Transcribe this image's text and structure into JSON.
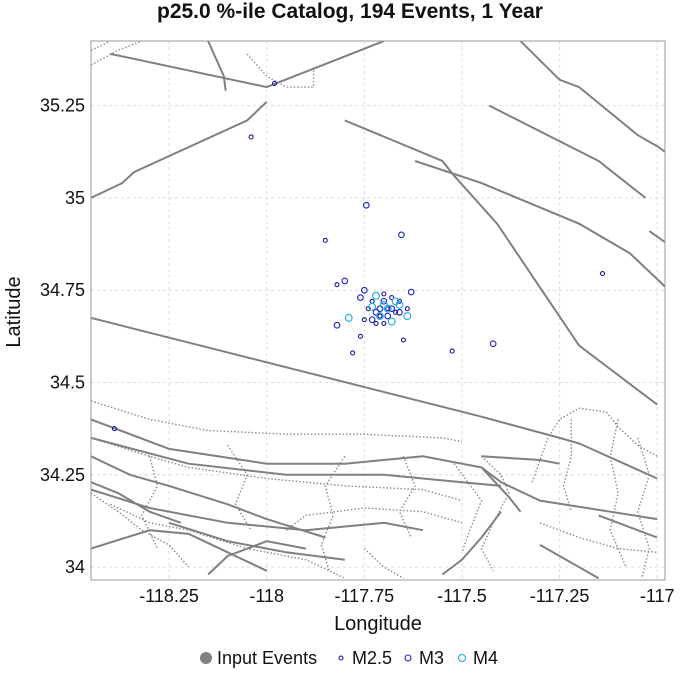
{
  "chart_data": {
    "type": "scatter",
    "title": "p25.0 %-ile Catalog, 194 Events, 1 Year",
    "xlabel": "Longitude",
    "ylabel": "Latitude",
    "xlim": [
      -118.45,
      -116.98
    ],
    "ylim": [
      33.965,
      35.425
    ],
    "xticks": [
      -118.25,
      -118,
      -117.75,
      -117.5,
      -117.25,
      -117
    ],
    "xtick_labels": [
      "-118.25",
      "-118",
      "-117.75",
      "-117.5",
      "-117.25",
      "-117"
    ],
    "yticks": [
      34,
      34.25,
      34.5,
      34.75,
      35,
      35.25
    ],
    "ytick_labels": [
      "34",
      "34.25",
      "34.5",
      "34.75",
      "35",
      "35.25"
    ],
    "grid": true,
    "legend_position": "bottom",
    "legend": [
      {
        "label": "Input Events",
        "marker": "filled-circle",
        "color": "#808080"
      },
      {
        "label": "M2.5",
        "marker": "open-circle",
        "color": "#1a1aa0"
      },
      {
        "label": "M3",
        "marker": "open-circle",
        "color": "#2020c0"
      },
      {
        "label": "M4",
        "marker": "open-circle",
        "color": "#20a8e0"
      }
    ],
    "series": [
      {
        "name": "M2.5",
        "color": "#1a1aa0",
        "points": [
          [
            -117.98,
            35.31
          ],
          [
            -118.04,
            35.165
          ],
          [
            -117.85,
            34.885
          ],
          [
            -117.82,
            34.765
          ],
          [
            -117.78,
            34.58
          ],
          [
            -117.76,
            34.625
          ],
          [
            -117.65,
            34.615
          ],
          [
            -117.525,
            34.585
          ],
          [
            -117.14,
            34.795
          ],
          [
            -118.39,
            34.375
          ],
          [
            -117.7,
            34.66
          ],
          [
            -117.67,
            34.69
          ],
          [
            -117.73,
            34.72
          ],
          [
            -117.69,
            34.7
          ],
          [
            -117.71,
            34.68
          ],
          [
            -117.66,
            34.72
          ],
          [
            -117.74,
            34.7
          ],
          [
            -117.72,
            34.66
          ],
          [
            -117.68,
            34.73
          ],
          [
            -117.7,
            34.74
          ],
          [
            -117.75,
            34.67
          ],
          [
            -117.64,
            34.7
          ]
        ]
      },
      {
        "name": "M3",
        "color": "#2020c0",
        "points": [
          [
            -117.745,
            34.98
          ],
          [
            -117.655,
            34.9
          ],
          [
            -117.42,
            34.605
          ],
          [
            -117.82,
            34.655
          ],
          [
            -117.8,
            34.775
          ],
          [
            -117.63,
            34.745
          ],
          [
            -117.71,
            34.7
          ],
          [
            -117.69,
            34.68
          ],
          [
            -117.72,
            34.69
          ],
          [
            -117.68,
            34.7
          ],
          [
            -117.7,
            34.72
          ],
          [
            -117.73,
            34.67
          ],
          [
            -117.66,
            34.69
          ],
          [
            -117.76,
            34.73
          ],
          [
            -117.75,
            34.75
          ]
        ]
      },
      {
        "name": "M4",
        "color": "#20a8e0",
        "points": [
          [
            -117.69,
            34.7
          ],
          [
            -117.71,
            34.68
          ],
          [
            -117.67,
            34.72
          ],
          [
            -117.79,
            34.675
          ],
          [
            -117.64,
            34.68
          ],
          [
            -117.73,
            34.705
          ],
          [
            -117.7,
            34.71
          ],
          [
            -117.68,
            34.665
          ],
          [
            -117.66,
            34.71
          ],
          [
            -117.72,
            34.735
          ]
        ]
      }
    ],
    "fault_lines": [
      [
        [
          -118.45,
          35
        ],
        [
          -118.37,
          35.04
        ],
        [
          -118.34,
          35.07
        ],
        [
          -118.05,
          35.21
        ],
        [
          -118.0,
          35.26
        ]
      ],
      [
        [
          -118.45,
          34.675
        ],
        [
          -117.46,
          34.41
        ],
        [
          -117.25,
          34.35
        ],
        [
          -117.2,
          34.335
        ],
        [
          -117.0,
          34.24
        ]
      ],
      [
        [
          -117.8,
          35.21
        ],
        [
          -117.55,
          35.1
        ],
        [
          -117.52,
          35.06
        ],
        [
          -117.41,
          34.93
        ],
        [
          -117.2,
          34.6
        ],
        [
          -117.0,
          34.44
        ]
      ],
      [
        [
          -117.62,
          35.1
        ],
        [
          -117.45,
          35.04
        ],
        [
          -117.2,
          34.93
        ],
        [
          -117.07,
          34.85
        ],
        [
          -116.98,
          34.76
        ]
      ],
      [
        [
          -117.43,
          35.25
        ],
        [
          -117.15,
          35.1
        ],
        [
          -117.03,
          35.0
        ]
      ],
      [
        [
          -118.15,
          35.425
        ],
        [
          -118.11,
          35.33
        ],
        [
          -118.105,
          35.29
        ]
      ],
      [
        [
          -118.4,
          35.39
        ],
        [
          -118.0,
          35.3
        ],
        [
          -117.7,
          35.425
        ]
      ],
      [
        [
          -117.35,
          35.425
        ],
        [
          -117.25,
          35.32
        ],
        [
          -117.2,
          35.3
        ],
        [
          -117.05,
          35.17
        ],
        [
          -117.0,
          35.14
        ],
        [
          -116.98,
          35.125
        ]
      ],
      [
        [
          -117.02,
          34.91
        ],
        [
          -116.98,
          34.88
        ]
      ],
      [
        [
          -118.45,
          34.4
        ],
        [
          -118.25,
          34.32
        ],
        [
          -118.0,
          34.28
        ],
        [
          -117.8,
          34.28
        ],
        [
          -117.6,
          34.3
        ],
        [
          -117.45,
          34.27
        ],
        [
          -117.4,
          34.23
        ],
        [
          -117.3,
          34.18
        ],
        [
          -117.0,
          34.13
        ]
      ],
      [
        [
          -118.45,
          34.35
        ],
        [
          -118.2,
          34.28
        ],
        [
          -117.95,
          34.25
        ],
        [
          -117.7,
          34.25
        ],
        [
          -117.5,
          34.23
        ],
        [
          -117.4,
          34.22
        ]
      ],
      [
        [
          -118.45,
          34.21
        ],
        [
          -118.3,
          34.16
        ],
        [
          -118.1,
          34.12
        ],
        [
          -117.9,
          34.1
        ],
        [
          -117.7,
          34.12
        ],
        [
          -117.6,
          34.1
        ]
      ],
      [
        [
          -118.45,
          34.05
        ],
        [
          -118.3,
          34.1
        ],
        [
          -118.2,
          34.09
        ],
        [
          -118.1,
          34.04
        ],
        [
          -118.0,
          33.99
        ]
      ],
      [
        [
          -117.45,
          34.3
        ],
        [
          -117.3,
          34.29
        ],
        [
          -117.25,
          34.28
        ]
      ],
      [
        [
          -118.45,
          34.23
        ],
        [
          -118.38,
          34.2
        ],
        [
          -118.3,
          34.15
        ],
        [
          -118.22,
          34.12
        ]
      ],
      [
        [
          -117.4,
          34.15
        ],
        [
          -117.45,
          34.08
        ],
        [
          -117.5,
          34.02
        ],
        [
          -117.55,
          33.98
        ]
      ],
      [
        [
          -117.45,
          34.27
        ],
        [
          -117.38,
          34.19
        ],
        [
          -117.35,
          34.15
        ]
      ],
      [
        [
          -117.0,
          34.08
        ],
        [
          -117.05,
          34.1
        ],
        [
          -117.15,
          34.14
        ]
      ],
      [
        [
          -118.25,
          34.12
        ],
        [
          -118.1,
          34.07
        ],
        [
          -117.95,
          34.04
        ],
        [
          -117.8,
          34.02
        ]
      ],
      [
        [
          -118.45,
          34.3
        ],
        [
          -118.35,
          34.25
        ],
        [
          -118.25,
          34.22
        ],
        [
          -118.1,
          34.17
        ],
        [
          -118.0,
          34.13
        ],
        [
          -117.85,
          34.08
        ]
      ],
      [
        [
          -118.15,
          33.98
        ],
        [
          -118.1,
          34.03
        ],
        [
          -118.0,
          34.07
        ],
        [
          -117.9,
          34.05
        ]
      ],
      [
        [
          -117.3,
          34.06
        ],
        [
          -117.2,
          34.0
        ],
        [
          -117.15,
          33.97
        ]
      ]
    ],
    "dotted_lines": [
      [
        [
          -118.45,
          34.45
        ],
        [
          -118.3,
          34.4
        ],
        [
          -118.15,
          34.37
        ],
        [
          -117.95,
          34.36
        ],
        [
          -117.75,
          34.36
        ],
        [
          -117.55,
          34.35
        ],
        [
          -117.5,
          34.34
        ]
      ],
      [
        [
          -118.45,
          34.35
        ],
        [
          -118.3,
          34.3
        ],
        [
          -118.2,
          34.27
        ],
        [
          -118.0,
          34.24
        ],
        [
          -117.8,
          34.22
        ],
        [
          -117.6,
          34.21
        ],
        [
          -117.5,
          34.18
        ]
      ],
      [
        [
          -118.4,
          34.17
        ],
        [
          -118.3,
          34.12
        ],
        [
          -118.2,
          34.1
        ],
        [
          -118.05,
          34.05
        ],
        [
          -117.9,
          34.02
        ],
        [
          -117.8,
          33.97
        ]
      ],
      [
        [
          -117.52,
          34.28
        ],
        [
          -117.45,
          34.18
        ],
        [
          -117.48,
          34.1
        ],
        [
          -117.5,
          34.04
        ]
      ],
      [
        [
          -118.1,
          34.33
        ],
        [
          -118.05,
          34.25
        ],
        [
          -118.08,
          34.17
        ],
        [
          -118.04,
          34.1
        ]
      ],
      [
        [
          -117.8,
          34.3
        ],
        [
          -117.85,
          34.22
        ],
        [
          -117.83,
          34.14
        ],
        [
          -117.86,
          34.06
        ],
        [
          -117.84,
          33.99
        ]
      ],
      [
        [
          -118.3,
          34.3
        ],
        [
          -118.28,
          34.22
        ],
        [
          -118.32,
          34.14
        ],
        [
          -118.28,
          34.05
        ]
      ],
      [
        [
          -117.65,
          34.3
        ],
        [
          -117.62,
          34.22
        ],
        [
          -117.66,
          34.15
        ],
        [
          -117.63,
          34.08
        ]
      ],
      [
        [
          -117.32,
          34.23
        ],
        [
          -117.28,
          34.35
        ],
        [
          -117.25,
          34.4
        ],
        [
          -117.2,
          34.43
        ],
        [
          -117.13,
          34.42
        ],
        [
          -117.1,
          34.38
        ],
        [
          -117.05,
          34.33
        ],
        [
          -117.0,
          34.3
        ]
      ],
      [
        [
          -117.22,
          34.4
        ],
        [
          -117.22,
          34.3
        ],
        [
          -117.24,
          34.22
        ],
        [
          -117.22,
          34.15
        ]
      ],
      [
        [
          -117.1,
          34.4
        ],
        [
          -117.12,
          34.3
        ],
        [
          -117.1,
          34.2
        ],
        [
          -117.12,
          34.1
        ],
        [
          -117.08,
          34.0
        ]
      ],
      [
        [
          -117.05,
          34.35
        ],
        [
          -117.02,
          34.25
        ],
        [
          -117.05,
          34.15
        ],
        [
          -117.02,
          34.05
        ],
        [
          -117.04,
          33.97
        ]
      ],
      [
        [
          -117.3,
          34.12
        ],
        [
          -117.2,
          34.08
        ],
        [
          -117.1,
          34.05
        ],
        [
          -117.0,
          34.04
        ]
      ],
      [
        [
          -118.05,
          35.39
        ],
        [
          -118.0,
          35.33
        ],
        [
          -117.95,
          35.3
        ],
        [
          -117.88,
          35.3
        ],
        [
          -117.88,
          35.35
        ]
      ],
      [
        [
          -118.45,
          35.36
        ],
        [
          -118.38,
          35.4
        ],
        [
          -118.32,
          35.425
        ]
      ],
      [
        [
          -118.45,
          35.4
        ],
        [
          -118.4,
          35.425
        ]
      ],
      [
        [
          -117.45,
          34.3
        ],
        [
          -117.4,
          34.25
        ],
        [
          -117.38,
          34.2
        ],
        [
          -117.42,
          34.12
        ],
        [
          -117.45,
          34.05
        ],
        [
          -117.42,
          33.99
        ]
      ],
      [
        [
          -118.45,
          34.2
        ],
        [
          -118.38,
          34.15
        ],
        [
          -118.32,
          34.1
        ],
        [
          -118.25,
          34.06
        ],
        [
          -118.2,
          34.0
        ]
      ],
      [
        [
          -117.95,
          34.1
        ],
        [
          -117.9,
          34.14
        ],
        [
          -117.75,
          34.16
        ],
        [
          -117.6,
          34.15
        ],
        [
          -117.5,
          34.12
        ]
      ],
      [
        [
          -117.75,
          34.05
        ],
        [
          -117.7,
          34.0
        ],
        [
          -117.65,
          33.97
        ]
      ]
    ]
  }
}
